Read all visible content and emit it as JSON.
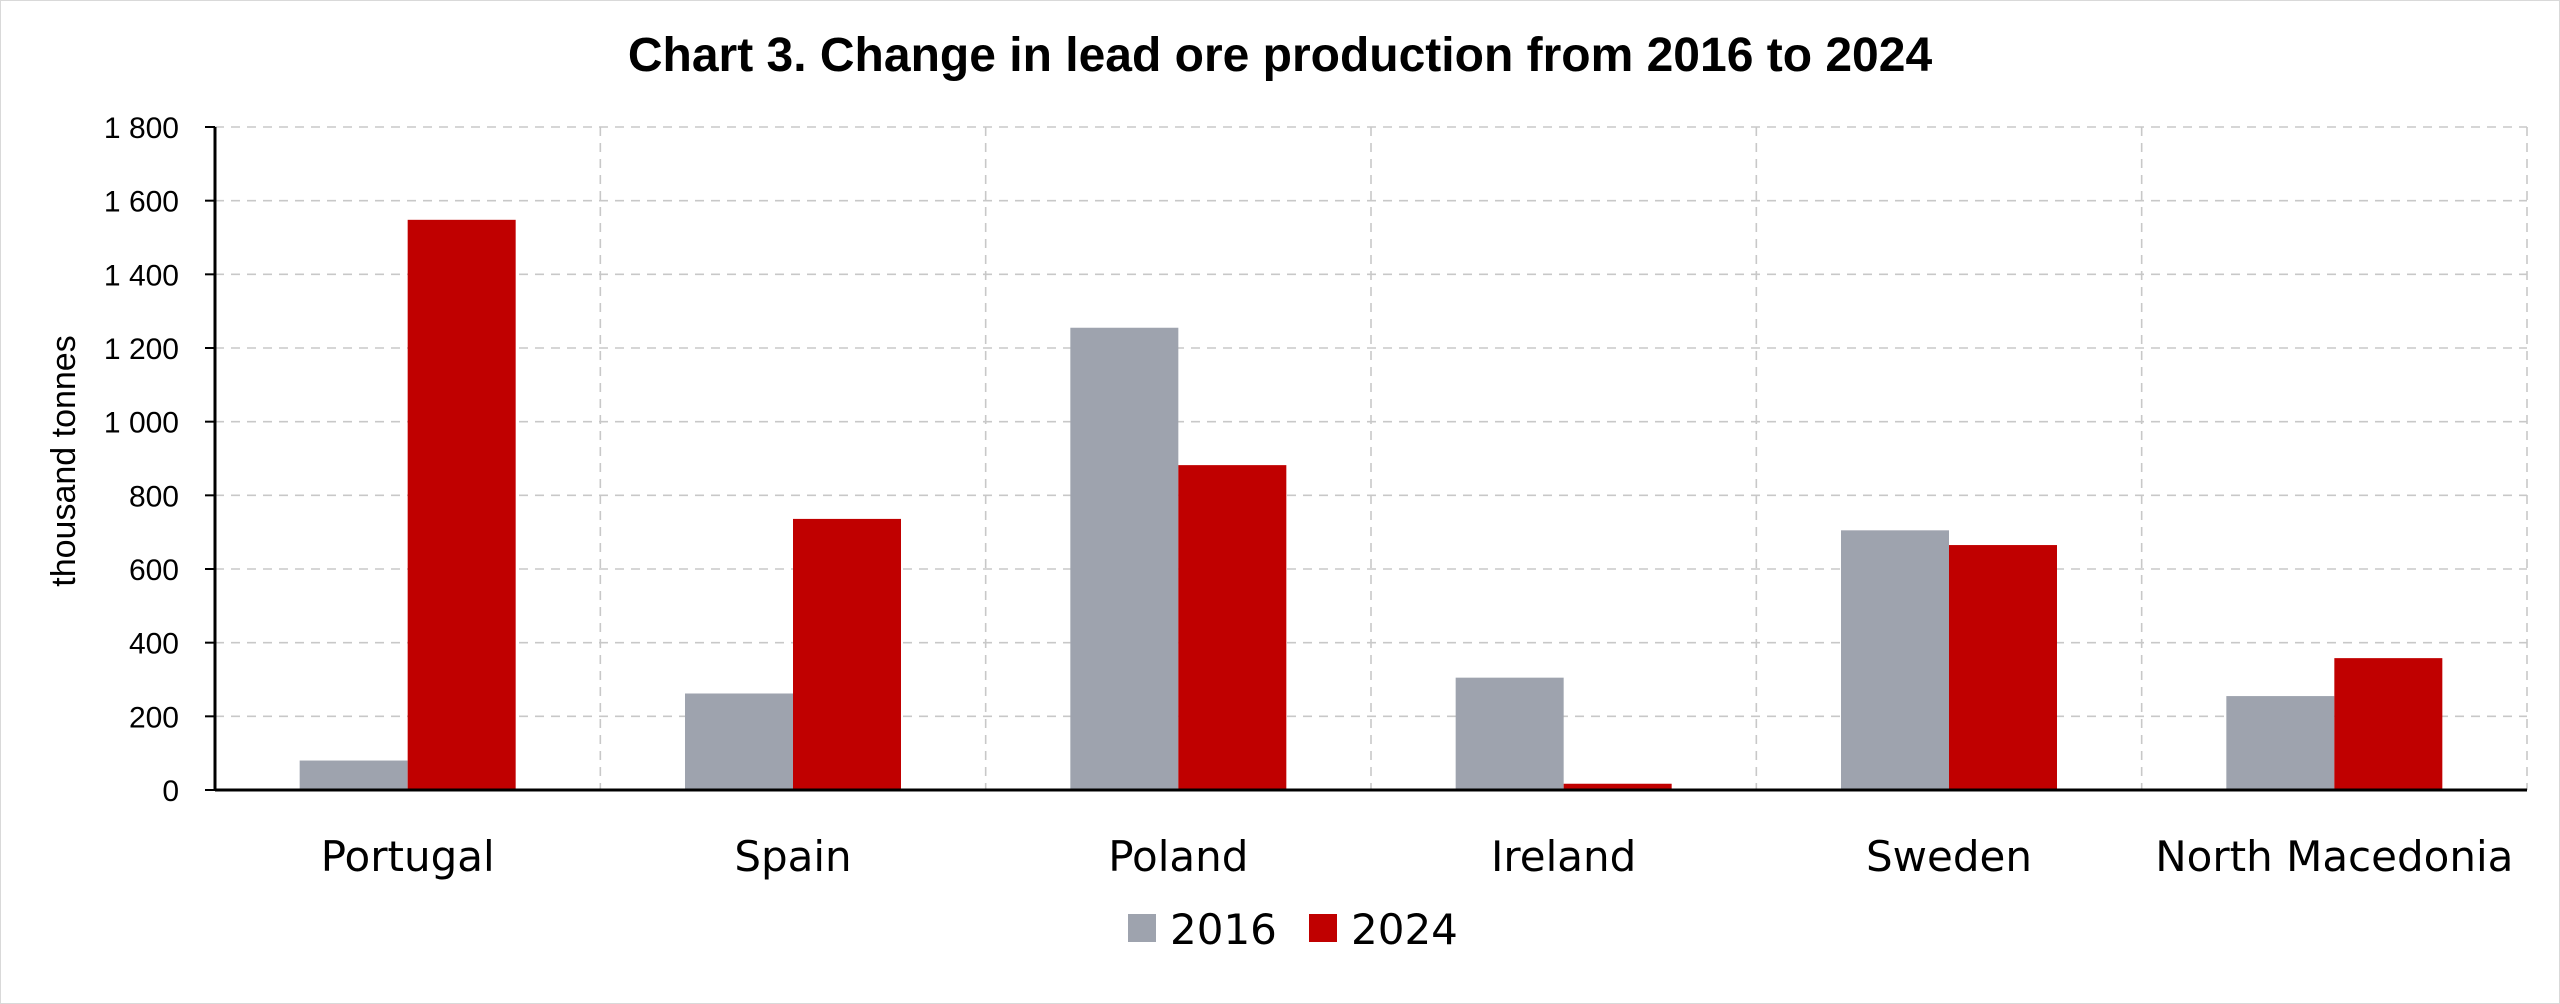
{
  "chart_data": {
    "type": "bar",
    "title": "Chart 3. Change in lead ore production from 2016 to 2024",
    "ylabel": "thousand tonnes",
    "xlabel": "",
    "ylim": [
      0,
      1800
    ],
    "yticks": [
      0,
      200,
      400,
      600,
      800,
      1000,
      1200,
      1400,
      1600,
      1800
    ],
    "ytick_labels": [
      "0",
      "200",
      "400",
      "600",
      "800",
      "1 000",
      "1 200",
      "1 400",
      "1 600",
      "1 800"
    ],
    "categories": [
      "Portugal",
      "Spain",
      "Poland",
      "Ireland",
      "Sweden",
      "North Macedonia"
    ],
    "series": [
      {
        "name": "2016",
        "color": "#9ea3ae",
        "values": [
          80,
          262,
          1255,
          305,
          705,
          255
        ]
      },
      {
        "name": "2024",
        "color": "#c00000",
        "values": [
          1548,
          736,
          882,
          17,
          665,
          358
        ]
      }
    ],
    "grid": true,
    "legend_position": "bottom-center"
  }
}
